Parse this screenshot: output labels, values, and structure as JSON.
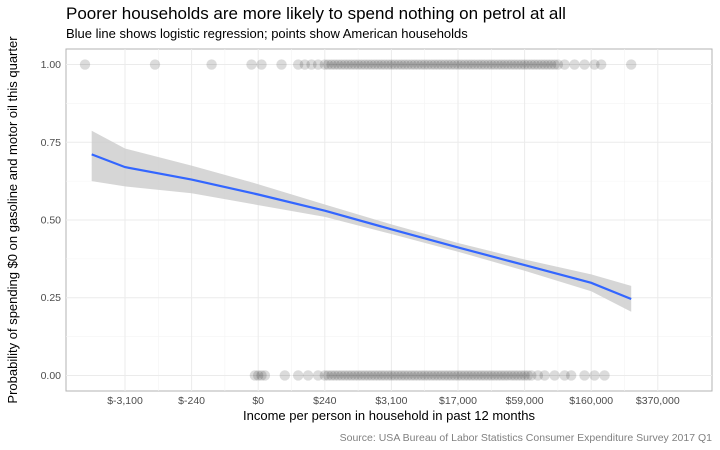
{
  "chart_data": {
    "type": "scatter",
    "title": "Poorer households are more likely to spend nothing on petrol at all",
    "subtitle": "Blue line shows logistic regression; points show American households",
    "xlabel": "Income per person in household in past 12 months",
    "ylabel": "Probability of spending $0 on gasoline and motor oil this quarter",
    "caption": "Source: USA Bureau of Labor Statistics Consumer Expenditure Survey 2017 Q1",
    "x_ticks": [
      "$-3,100",
      "$-240",
      "$0",
      "$240",
      "$3,100",
      "$17,000",
      "$59,000",
      "$160,000",
      "$370,000"
    ],
    "y_ticks": [
      "0.00",
      "0.25",
      "0.50",
      "0.75",
      "1.00"
    ],
    "ylim": [
      -0.05,
      1.05
    ],
    "grid": true,
    "colors": {
      "line": "#3366ff",
      "ribbon": "#cccccc",
      "points": "#000000",
      "panel_border": "#b3b3b3",
      "grid": "#ebebeb"
    },
    "series": [
      {
        "type": "line",
        "x_tick_pos": [
          -0.5,
          0,
          1,
          2,
          3,
          4,
          5,
          6,
          7,
          7.6
        ],
        "y": [
          0.711,
          0.67,
          0.63,
          0.582,
          0.53,
          0.47,
          0.412,
          0.355,
          0.298,
          0.246
        ],
        "ci_low": [
          0.625,
          0.608,
          0.586,
          0.548,
          0.51,
          0.455,
          0.398,
          0.337,
          0.271,
          0.205
        ],
        "ci_high": [
          0.787,
          0.73,
          0.675,
          0.615,
          0.55,
          0.486,
          0.426,
          0.373,
          0.325,
          0.288
        ]
      },
      {
        "type": "points",
        "y": 1,
        "x_tick_pos": [
          -0.6,
          0.45,
          1.3,
          1.9,
          2.05,
          2.35,
          2.6,
          2.7,
          2.8,
          2.9,
          3.0,
          3.05,
          3.1,
          3.15,
          3.2,
          3.25,
          3.3,
          3.35,
          3.4,
          3.45,
          3.5,
          3.55,
          3.6,
          3.65,
          3.7,
          3.75,
          3.8,
          3.85,
          3.9,
          3.95,
          4.0,
          4.05,
          4.1,
          4.15,
          4.2,
          4.25,
          4.3,
          4.35,
          4.4,
          4.45,
          4.5,
          4.55,
          4.6,
          4.65,
          4.7,
          4.75,
          4.8,
          4.85,
          4.9,
          4.95,
          5.0,
          5.05,
          5.1,
          5.15,
          5.2,
          5.25,
          5.3,
          5.35,
          5.4,
          5.45,
          5.5,
          5.55,
          5.6,
          5.65,
          5.7,
          5.75,
          5.8,
          5.85,
          5.9,
          5.95,
          6.0,
          6.05,
          6.1,
          6.15,
          6.2,
          6.25,
          6.3,
          6.35,
          6.4,
          6.45,
          6.5,
          6.6,
          6.75,
          6.9,
          7.05,
          7.15,
          7.6
        ]
      },
      {
        "type": "points",
        "y": 0,
        "x_tick_pos": [
          1.95,
          2.0,
          2.05,
          2.1,
          2.4,
          2.6,
          2.75,
          2.9,
          3.0,
          3.05,
          3.1,
          3.15,
          3.2,
          3.25,
          3.3,
          3.35,
          3.4,
          3.45,
          3.5,
          3.55,
          3.6,
          3.65,
          3.7,
          3.75,
          3.8,
          3.85,
          3.9,
          3.95,
          4.0,
          4.05,
          4.1,
          4.15,
          4.2,
          4.25,
          4.3,
          4.35,
          4.4,
          4.45,
          4.5,
          4.55,
          4.6,
          4.65,
          4.7,
          4.75,
          4.8,
          4.85,
          4.9,
          4.95,
          5.0,
          5.05,
          5.1,
          5.15,
          5.2,
          5.25,
          5.3,
          5.35,
          5.4,
          5.45,
          5.5,
          5.55,
          5.6,
          5.65,
          5.7,
          5.75,
          5.8,
          5.85,
          5.9,
          5.95,
          6.0,
          6.05,
          6.1,
          6.2,
          6.3,
          6.45,
          6.6,
          6.7,
          6.9,
          7.05,
          7.2
        ]
      }
    ]
  }
}
